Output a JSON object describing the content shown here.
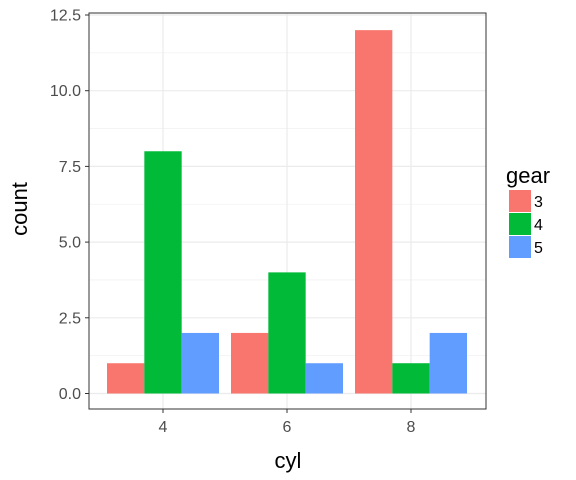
{
  "chart_data": {
    "type": "bar",
    "categories": [
      "4",
      "6",
      "8"
    ],
    "series": [
      {
        "name": "3",
        "color": "#F8766D",
        "values": [
          1,
          2,
          12
        ]
      },
      {
        "name": "4",
        "color": "#00BA38",
        "values": [
          8,
          4,
          1
        ]
      },
      {
        "name": "5",
        "color": "#619CFF",
        "values": [
          2,
          1,
          2
        ]
      }
    ],
    "xlabel": "cyl",
    "ylabel": "count",
    "ylim": [
      0,
      12.5
    ],
    "yticks": [
      "0.0",
      "2.5",
      "5.0",
      "7.5",
      "10.0",
      "12.5"
    ],
    "legend": {
      "title": "gear",
      "position": "right"
    },
    "grid": true
  }
}
